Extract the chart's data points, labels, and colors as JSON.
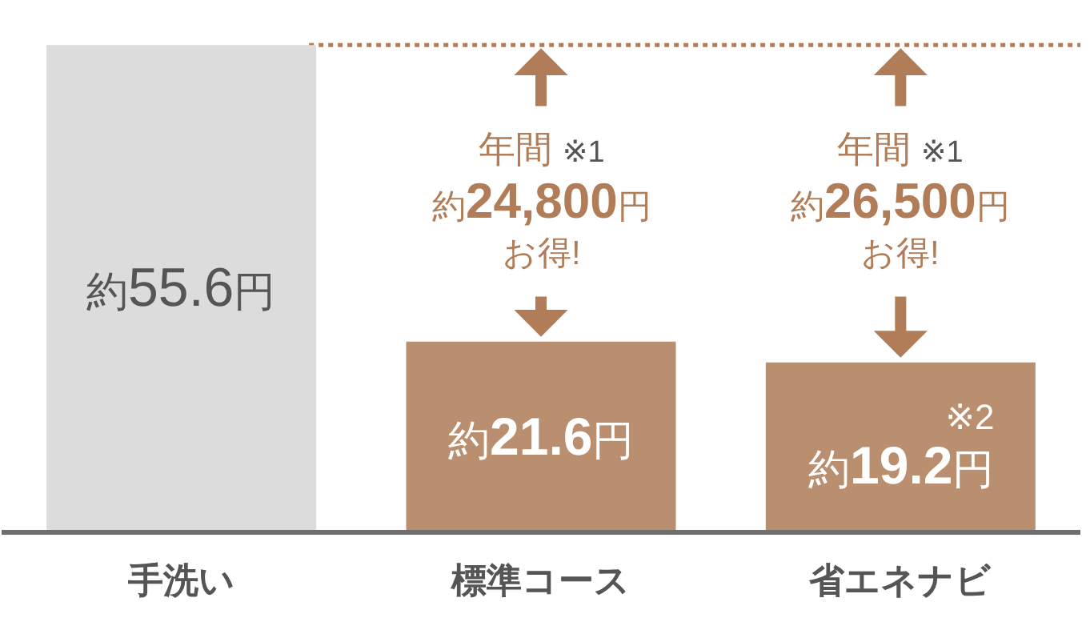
{
  "chart_data": {
    "type": "bar",
    "categories": [
      "手洗い",
      "標準コース",
      "省エネナビ"
    ],
    "values": [
      55.6,
      21.6,
      19.2
    ],
    "colors": [
      "#dcdcdc",
      "#b98f6f",
      "#b98f6f"
    ],
    "value_labels": [
      "約55.6円",
      "約21.6円",
      "※2\n約19.2円"
    ],
    "tick_labels": "x",
    "ref_lines": [
      {
        "axis": "y",
        "value": 55.6,
        "color": "#b07d58",
        "line_style": "dotted"
      }
    ],
    "annotations": [
      "年間 ※1",
      "約24,800円",
      "お得!",
      "年間 ※1",
      "約26,500円",
      "お得!"
    ]
  }
}
